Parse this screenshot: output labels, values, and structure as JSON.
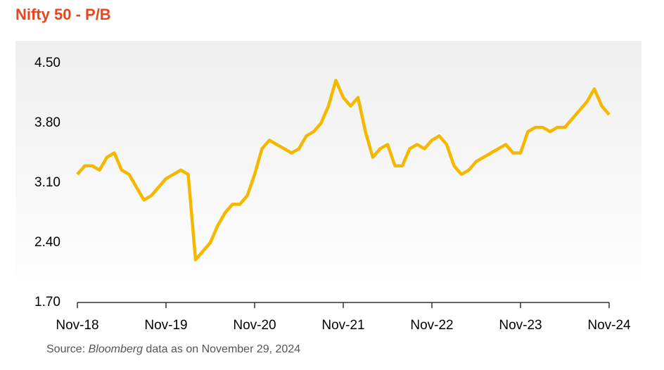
{
  "chart_data": {
    "type": "line",
    "title": "Nifty 50 - P/B",
    "x": [
      "Nov-18",
      "Dec-18",
      "Jan-19",
      "Feb-19",
      "Mar-19",
      "Apr-19",
      "May-19",
      "Jun-19",
      "Jul-19",
      "Aug-19",
      "Sep-19",
      "Oct-19",
      "Nov-19",
      "Dec-19",
      "Jan-20",
      "Feb-20",
      "Mar-20",
      "Apr-20",
      "May-20",
      "Jun-20",
      "Jul-20",
      "Aug-20",
      "Sep-20",
      "Oct-20",
      "Nov-20",
      "Dec-20",
      "Jan-21",
      "Feb-21",
      "Mar-21",
      "Apr-21",
      "May-21",
      "Jun-21",
      "Jul-21",
      "Aug-21",
      "Sep-21",
      "Oct-21",
      "Nov-21",
      "Dec-21",
      "Jan-22",
      "Feb-22",
      "Mar-22",
      "Apr-22",
      "May-22",
      "Jun-22",
      "Jul-22",
      "Aug-22",
      "Sep-22",
      "Oct-22",
      "Nov-22",
      "Dec-22",
      "Jan-23",
      "Feb-23",
      "Mar-23",
      "Apr-23",
      "May-23",
      "Jun-23",
      "Jul-23",
      "Aug-23",
      "Sep-23",
      "Oct-23",
      "Nov-23",
      "Dec-23",
      "Jan-24",
      "Feb-24",
      "Mar-24",
      "Apr-24",
      "May-24",
      "Jun-24",
      "Jul-24",
      "Aug-24",
      "Sep-24",
      "Oct-24",
      "Nov-24"
    ],
    "series": [
      {
        "name": "Nifty 50 P/B",
        "color": "#f5b800",
        "values": [
          3.2,
          3.3,
          3.3,
          3.25,
          3.4,
          3.45,
          3.25,
          3.2,
          3.05,
          2.9,
          2.95,
          3.05,
          3.15,
          3.2,
          3.25,
          3.2,
          2.2,
          2.3,
          2.4,
          2.6,
          2.75,
          2.85,
          2.85,
          2.95,
          3.2,
          3.5,
          3.6,
          3.55,
          3.5,
          3.45,
          3.5,
          3.65,
          3.7,
          3.8,
          4.0,
          4.3,
          4.1,
          4.0,
          4.1,
          3.7,
          3.4,
          3.5,
          3.55,
          3.3,
          3.3,
          3.5,
          3.55,
          3.5,
          3.6,
          3.65,
          3.55,
          3.3,
          3.2,
          3.25,
          3.35,
          3.4,
          3.45,
          3.5,
          3.55,
          3.45,
          3.45,
          3.7,
          3.75,
          3.75,
          3.7,
          3.75,
          3.75,
          3.85,
          3.95,
          4.05,
          4.2,
          4.0,
          3.9
        ]
      }
    ],
    "xticks": [
      "Nov-18",
      "Nov-19",
      "Nov-20",
      "Nov-21",
      "Nov-22",
      "Nov-23",
      "Nov-24"
    ],
    "ylim": [
      1.7,
      4.5
    ],
    "yticks": [
      {
        "value": 1.7,
        "label": "1.70"
      },
      {
        "value": 2.4,
        "label": "2.40"
      },
      {
        "value": 3.1,
        "label": "3.10"
      },
      {
        "value": 3.8,
        "label": "3.80"
      },
      {
        "value": 4.5,
        "label": "4.50"
      }
    ],
    "grid": false,
    "source": [
      "Source:",
      "Bloomberg",
      "data as on November 29, 2024"
    ]
  }
}
